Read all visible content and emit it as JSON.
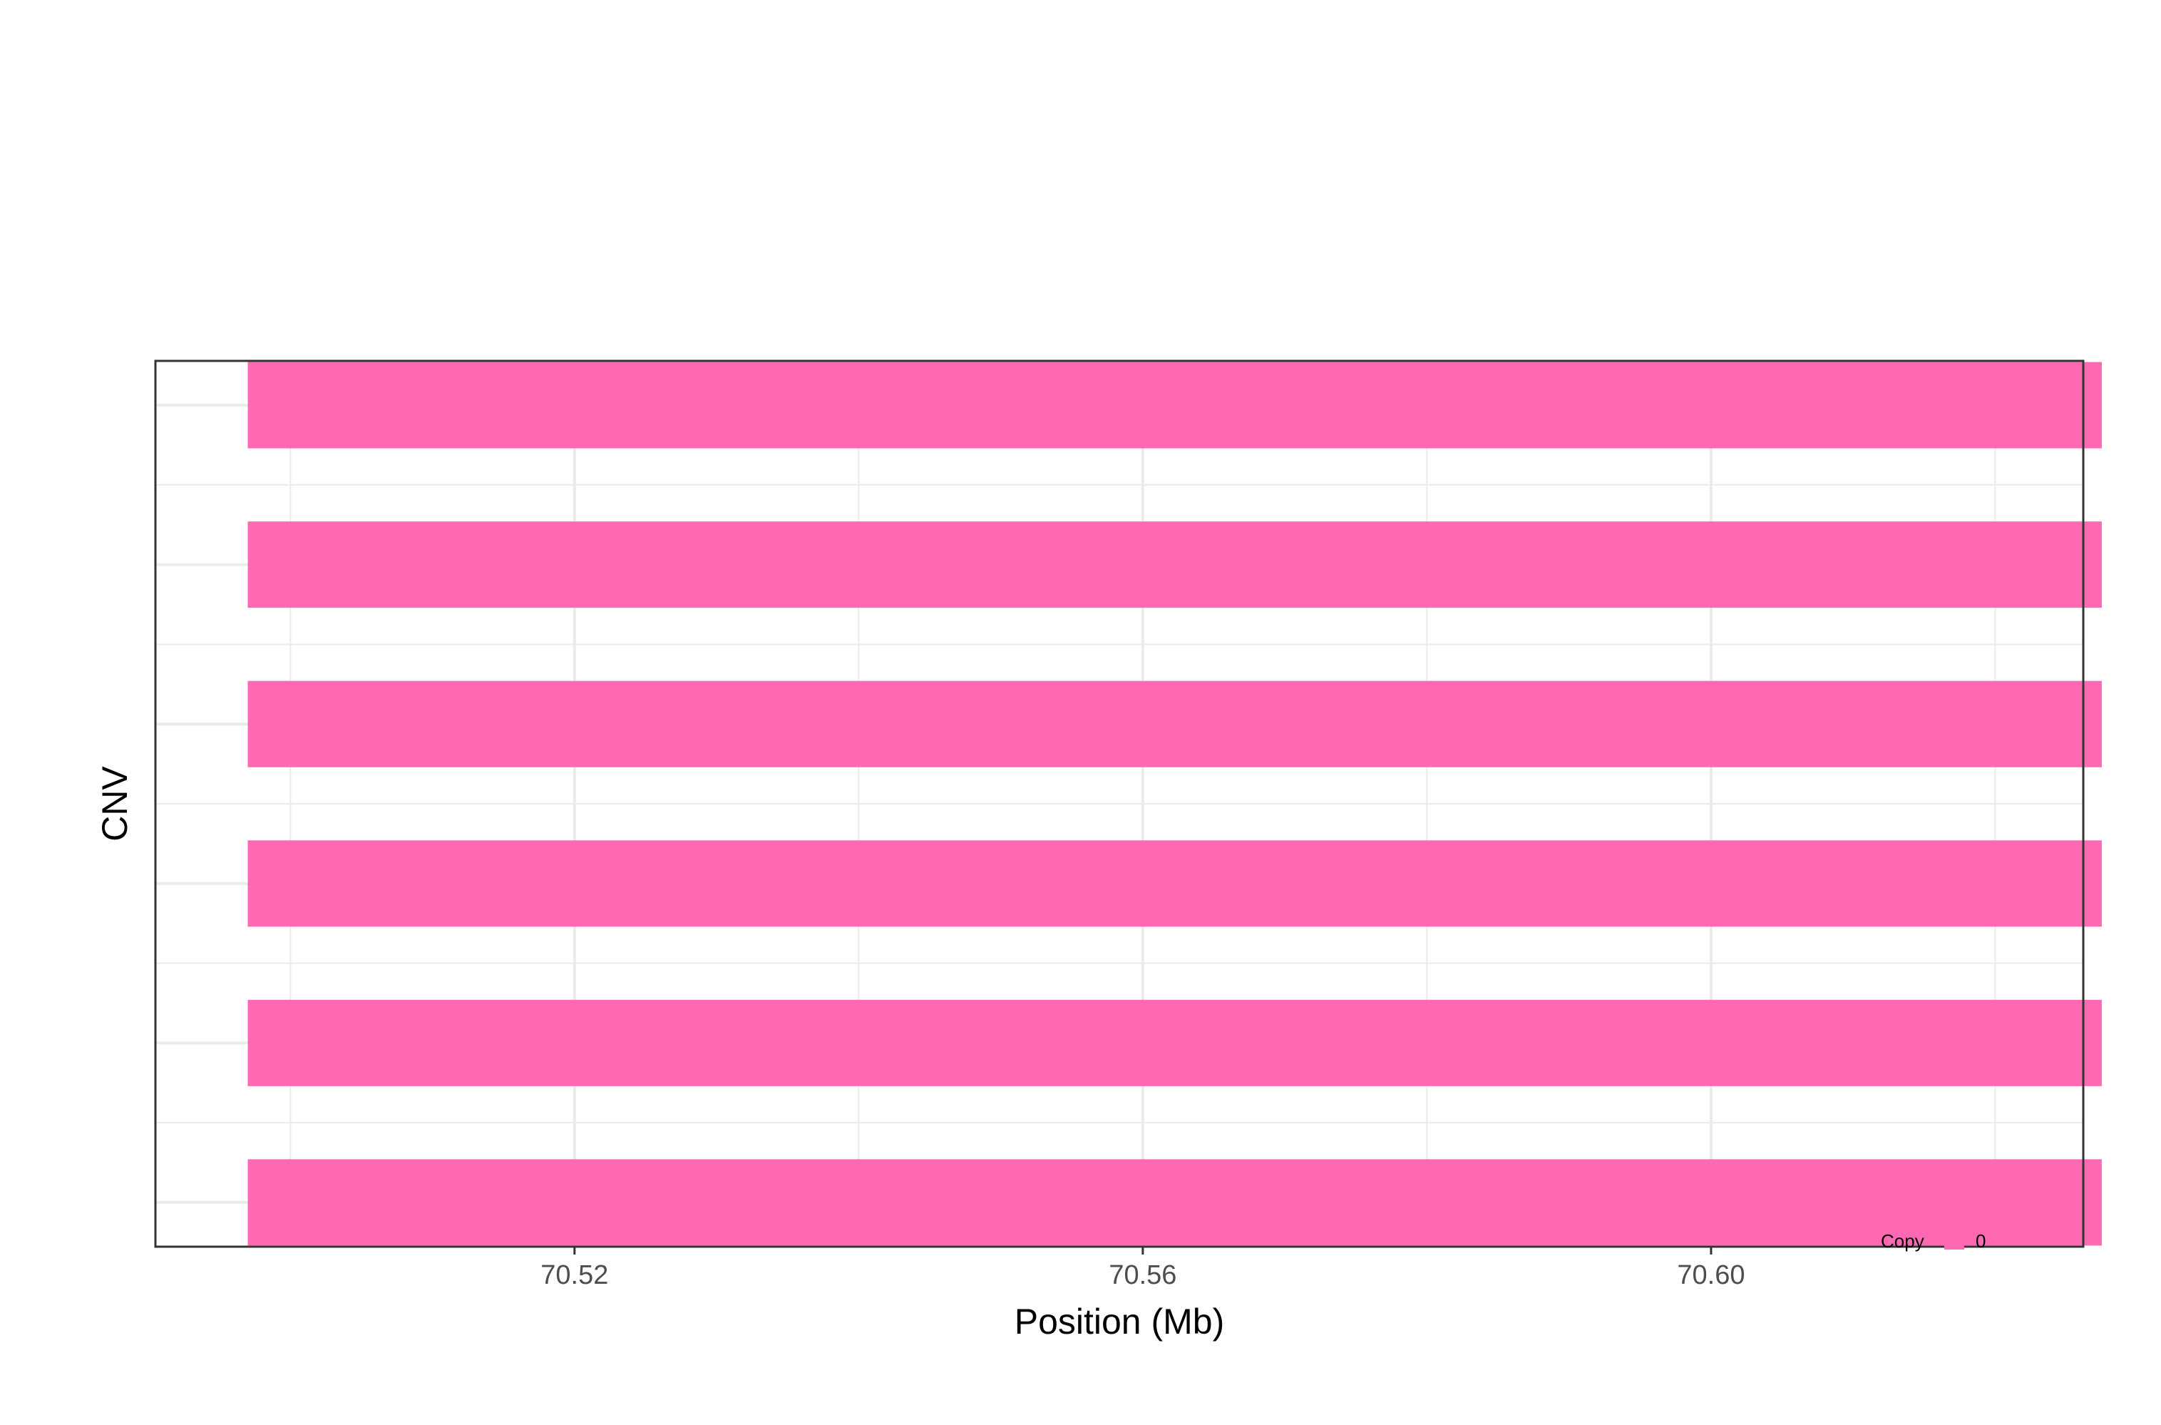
{
  "chart_data": {
    "type": "bar",
    "orientation": "horizontal",
    "xlabel": "Position (Mb)",
    "ylabel": "CNV",
    "xlim": [
      70.4905,
      70.6262
    ],
    "x_ticks": [
      70.52,
      70.56,
      70.6
    ],
    "x_tick_labels": [
      "70.52",
      "70.56",
      "70.60"
    ],
    "x_minor_ticks": [
      70.5,
      70.54,
      70.58,
      70.62
    ],
    "grid": true,
    "legend": {
      "title": "Copy",
      "placement": "bottom-right",
      "entries": [
        {
          "label": "0",
          "color": "#FF69B4"
        }
      ]
    },
    "series": [
      {
        "copy": "0",
        "start": 70.497,
        "end": 70.6275
      },
      {
        "copy": "0",
        "start": 70.497,
        "end": 70.6275
      },
      {
        "copy": "0",
        "start": 70.497,
        "end": 70.6275
      },
      {
        "copy": "0",
        "start": 70.497,
        "end": 70.6275
      },
      {
        "copy": "0",
        "start": 70.497,
        "end": 70.6275
      },
      {
        "copy": "0",
        "start": 70.497,
        "end": 70.6275
      }
    ],
    "colors": {
      "bar": "#FF69B4",
      "grid": "#ebebeb",
      "border": "#333333"
    }
  }
}
